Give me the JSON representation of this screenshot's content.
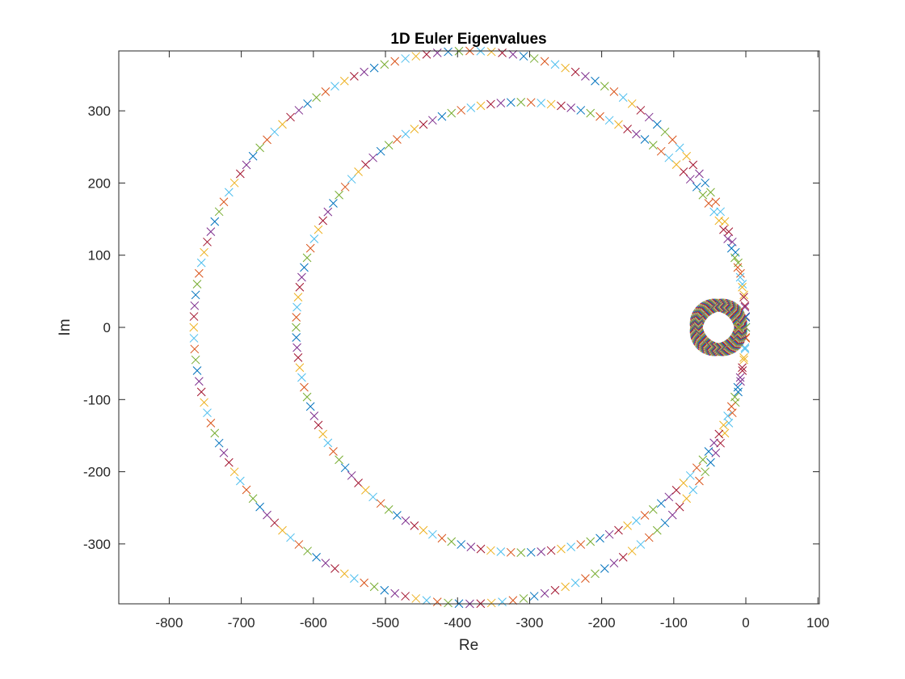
{
  "chart_data": {
    "type": "scatter",
    "title": "1D Euler Eigenvalues",
    "xlabel": "Re",
    "ylabel": "Im",
    "xlim": [
      -870,
      102
    ],
    "ylim": [
      -383,
      383
    ],
    "xticks": [
      -800,
      -700,
      -600,
      -500,
      -400,
      -300,
      -200,
      -100,
      0,
      100
    ],
    "yticks": [
      -300,
      -200,
      -100,
      0,
      100,
      200,
      300
    ],
    "grid": false,
    "legend": "none",
    "marker": "x",
    "colors": [
      "#0072BD",
      "#D95319",
      "#EDB120",
      "#7E2F8E",
      "#77AC30",
      "#4DBEEE",
      "#A2142F"
    ],
    "series": [
      {
        "shape": "circle",
        "center": [
          -383,
          0
        ],
        "radius": 383,
        "points": 160
      },
      {
        "shape": "circle",
        "center": [
          -312,
          0
        ],
        "radius": 312,
        "points": 140
      },
      {
        "shape": "circle",
        "center": [
          -38,
          0
        ],
        "radius": 34,
        "points": 170,
        "band": 4
      }
    ]
  }
}
